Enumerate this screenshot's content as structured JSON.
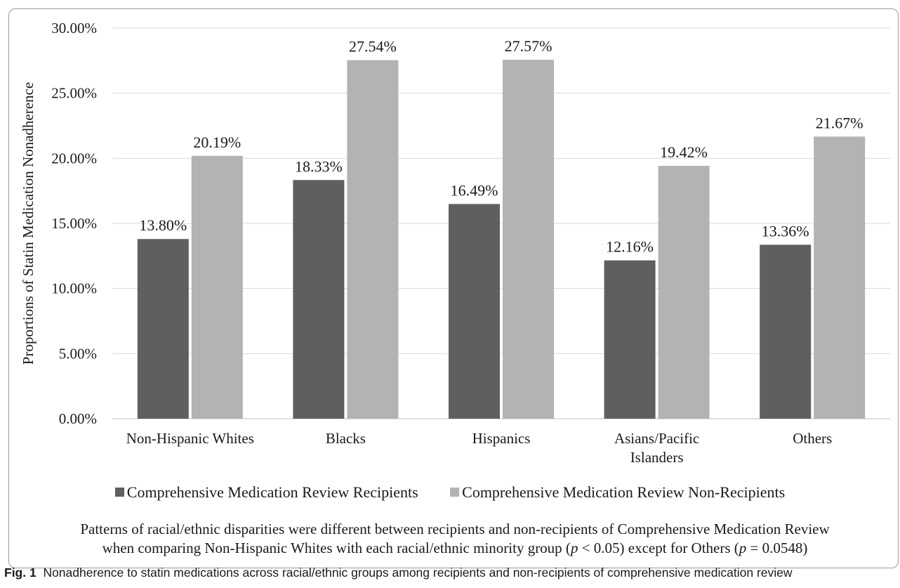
{
  "chart_data": {
    "type": "bar",
    "ylabel": "Proportions of Statin Medication Nonadherence",
    "xlabel": "",
    "ylim": [
      0,
      30
    ],
    "yticks": [
      "0.00%",
      "5.00%",
      "10.00%",
      "15.00%",
      "20.00%",
      "25.00%",
      "30.00%"
    ],
    "categories": [
      [
        "Non-Hispanic Whites"
      ],
      [
        "Blacks"
      ],
      [
        "Hispanics"
      ],
      [
        "Asians/Pacific",
        "Islanders"
      ],
      [
        "Others"
      ]
    ],
    "series": [
      {
        "name": "Comprehensive Medication Review Recipients",
        "color": "#5f5f5f",
        "values": [
          13.8,
          18.33,
          16.49,
          12.16,
          13.36
        ],
        "labels": [
          "13.80%",
          "18.33%",
          "16.49%",
          "12.16%",
          "13.36%"
        ]
      },
      {
        "name": "Comprehensive Medication Review Non-Recipients",
        "color": "#b3b3b3",
        "values": [
          20.19,
          27.54,
          27.57,
          19.42,
          21.67
        ],
        "labels": [
          "20.19%",
          "27.54%",
          "27.57%",
          "19.42%",
          "21.67%"
        ]
      }
    ],
    "grid": true,
    "gridline_color": "#d9d9d9",
    "legend_position": "bottom"
  },
  "note": {
    "line1": "Patterns of racial/ethnic disparities were different between recipients and non-recipients of Comprehensive Medication Review",
    "line2_pre": "when comparing Non-Hispanic Whites with each racial/ethnic minority group (",
    "line2_p1": "p",
    "line2_mid": " < 0.05) except for Others (",
    "line2_p2": "p",
    "line2_post": " = 0.0548)"
  },
  "caption": {
    "label": "Fig. 1",
    "text": "Nonadherence to statin medications across racial/ethnic groups among recipients and non-recipients of comprehensive medication review"
  }
}
